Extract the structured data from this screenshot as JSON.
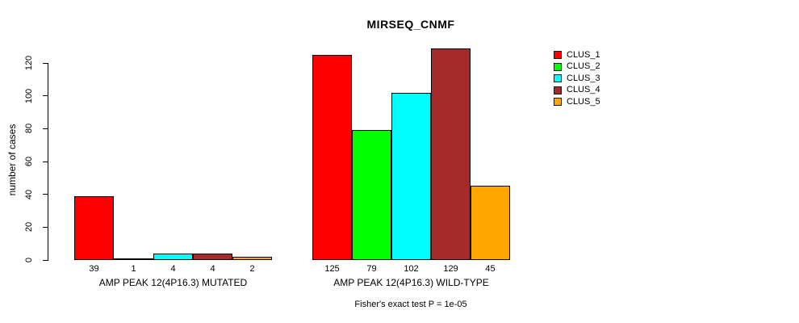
{
  "chart_data": {
    "type": "bar",
    "title": "MIRSEQ_CNMF",
    "ylabel": "number of cases",
    "xlabel": "",
    "ylim": [
      0,
      120
    ],
    "yticks": [
      0,
      20,
      40,
      60,
      80,
      100,
      120
    ],
    "grid": false,
    "legend_position": "top-right",
    "series": [
      {
        "name": "CLUS_1",
        "color": "#FF0000",
        "values": [
          39,
          125
        ]
      },
      {
        "name": "CLUS_2",
        "color": "#00FF00",
        "values": [
          1,
          79
        ]
      },
      {
        "name": "CLUS_3",
        "color": "#00FFFF",
        "values": [
          4,
          102
        ]
      },
      {
        "name": "CLUS_4",
        "color": "#A52A2A",
        "values": [
          4,
          129
        ]
      },
      {
        "name": "CLUS_5",
        "color": "#FFA500",
        "values": [
          2,
          45
        ]
      }
    ],
    "groups": [
      {
        "label": "AMP PEAK 12(4P16.3) MUTATED",
        "values": [
          39,
          1,
          4,
          4,
          2
        ]
      },
      {
        "label": "AMP PEAK 12(4P16.3) WILD-TYPE",
        "values": [
          125,
          79,
          102,
          129,
          45
        ]
      }
    ],
    "footnote": "Fisher's exact test P = 1e-05"
  }
}
